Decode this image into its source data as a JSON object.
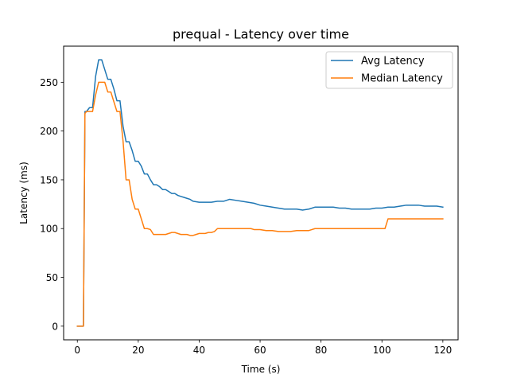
{
  "chart_data": {
    "type": "line",
    "title": "prequal - Latency over time",
    "xlabel": "Time (s)",
    "ylabel": "Latency (ms)",
    "xlim": [
      -4.5,
      125
    ],
    "ylim": [
      -14,
      287
    ],
    "xticks": [
      0,
      20,
      40,
      60,
      80,
      100,
      120
    ],
    "yticks": [
      0,
      50,
      100,
      150,
      200,
      250
    ],
    "grid": false,
    "legend_position": "top-right",
    "series": [
      {
        "name": "Avg Latency",
        "color": "#1f77b4",
        "x": [
          0,
          1,
          2,
          2.5,
          3,
          4,
          5,
          6,
          7,
          8,
          9,
          10,
          11,
          12,
          13,
          14,
          15,
          16,
          17,
          18,
          19,
          20,
          21,
          22,
          23,
          24,
          25,
          26,
          27,
          28,
          29,
          30,
          31,
          32,
          33,
          34,
          35,
          36,
          37,
          38,
          40,
          42,
          44,
          46,
          48,
          50,
          52,
          54,
          56,
          58,
          60,
          62,
          64,
          66,
          68,
          70,
          72,
          74,
          76,
          78,
          80,
          82,
          84,
          86,
          88,
          90,
          92,
          94,
          96,
          98,
          100,
          102,
          104,
          106,
          108,
          110,
          112,
          114,
          116,
          118,
          120
        ],
        "y": [
          0,
          0,
          0,
          220,
          220,
          224,
          224,
          256,
          273,
          273,
          263,
          253,
          253,
          243,
          231,
          231,
          205,
          189,
          189,
          180,
          169,
          169,
          164,
          156,
          156,
          150,
          145,
          145,
          143,
          140,
          140,
          138,
          136,
          136,
          134,
          133,
          132,
          131,
          130,
          128,
          127,
          127,
          127,
          128,
          128,
          130,
          129,
          128,
          127,
          126,
          124,
          123,
          122,
          121,
          120,
          120,
          120,
          119,
          120,
          122,
          122,
          122,
          122,
          121,
          121,
          120,
          120,
          120,
          120,
          121,
          121,
          122,
          122,
          123,
          124,
          124,
          124,
          123,
          123,
          123,
          122
        ]
      },
      {
        "name": "Median Latency",
        "color": "#ff7f0e",
        "x": [
          0,
          1,
          2,
          2.5,
          3,
          4,
          5,
          6,
          7,
          8,
          9,
          10,
          11,
          12,
          13,
          14,
          15,
          16,
          17,
          18,
          19,
          20,
          21,
          22,
          23,
          24,
          25,
          26,
          27,
          28,
          29,
          30,
          31,
          32,
          33,
          34,
          35,
          36,
          37,
          38,
          39,
          40,
          41,
          42,
          43,
          44,
          45,
          46,
          48,
          50,
          52,
          54,
          56,
          57,
          58,
          60,
          62,
          64,
          66,
          68,
          70,
          72,
          74,
          76,
          78,
          80,
          85,
          90,
          95,
          100,
          101,
          102,
          105,
          110,
          115,
          120
        ],
        "y": [
          0,
          0,
          0,
          218,
          220,
          220,
          220,
          237,
          250,
          250,
          250,
          240,
          240,
          230,
          220,
          220,
          190,
          150,
          150,
          130,
          120,
          120,
          110,
          100,
          100,
          99,
          94,
          94,
          94,
          94,
          94,
          95,
          96,
          96,
          95,
          94,
          94,
          94,
          93,
          93,
          94,
          95,
          95,
          95,
          96,
          96,
          97,
          100,
          100,
          100,
          100,
          100,
          100,
          100,
          99,
          99,
          98,
          98,
          97,
          97,
          97,
          98,
          98,
          98,
          100,
          100,
          100,
          100,
          100,
          100,
          100,
          110,
          110,
          110,
          110,
          110
        ]
      }
    ]
  }
}
